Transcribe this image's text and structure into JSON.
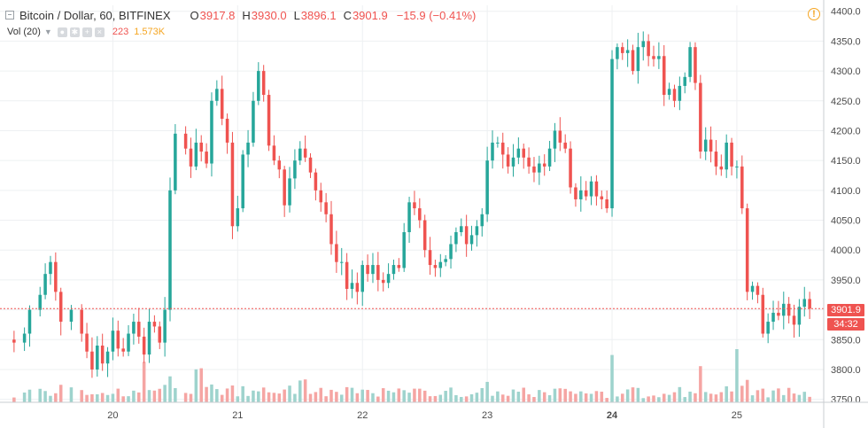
{
  "header": {
    "symbol_line": "Bitcoin / Dollar, 60, BITFINEX",
    "open_key": "O",
    "open_value": "3917.8",
    "high_key": "H",
    "high_value": "3930.0",
    "low_key": "L",
    "low_value": "3896.1",
    "close_key": "C",
    "close_value": "3901.9",
    "change": "−15.9 (−0.41%)"
  },
  "volume_legend": {
    "label": "Vol (20)",
    "value_a": "223",
    "value_b": "1.573K"
  },
  "price_badges": {
    "last_price": "3901.9",
    "countdown": "34:32"
  },
  "colors": {
    "up": "#26a69a",
    "down": "#ef5350",
    "up_volume": "#9ed3cd",
    "down_volume": "#f5a5a3",
    "price_line": "#ef5350",
    "alert": "#f5a623"
  },
  "icons": [
    "collapse-icon",
    "eye-icon",
    "settings-icon",
    "plus-icon",
    "close-icon",
    "alert-icon"
  ],
  "chart_data": {
    "type": "candlestick",
    "timeframe": "60",
    "y_ticks": [
      3750,
      3800,
      3850,
      3900,
      3950,
      4000,
      4050,
      4100,
      4150,
      4200,
      4250,
      4300,
      4350,
      4400
    ],
    "y_tick_labels": [
      "3750.0",
      "3800.0",
      "3850.0",
      "3900.0",
      "3950.0",
      "4000.0",
      "4050.0",
      "4100.0",
      "4150.0",
      "4200.0",
      "4250.0",
      "4300.0",
      "4350.0",
      "4400.0"
    ],
    "ylim": [
      3745,
      4410
    ],
    "x_ticks": [
      {
        "label": "20",
        "hour": 24,
        "bold": false
      },
      {
        "label": "21",
        "hour": 48,
        "bold": false
      },
      {
        "label": "22",
        "hour": 72,
        "bold": false
      },
      {
        "label": "23",
        "hour": 96,
        "bold": false
      },
      {
        "label": "24",
        "hour": 120,
        "bold": true
      },
      {
        "label": "25",
        "hour": 144,
        "bold": false
      }
    ],
    "x_range_hours": [
      4,
      159
    ],
    "last_price": 3901.9,
    "grid": true,
    "key_points": [
      [
        4,
        3850
      ],
      [
        5,
        3845
      ],
      [
        7,
        3860
      ],
      [
        8,
        3900
      ],
      [
        10,
        3925
      ],
      [
        11,
        3960
      ],
      [
        12,
        3980
      ],
      [
        13,
        3930
      ],
      [
        14,
        3880
      ],
      [
        16,
        3900
      ],
      [
        18,
        3860
      ],
      [
        19,
        3830
      ],
      [
        20,
        3800
      ],
      [
        21,
        3840
      ],
      [
        22,
        3810
      ],
      [
        23,
        3830
      ],
      [
        24,
        3865
      ],
      [
        25,
        3835
      ],
      [
        26,
        3830
      ],
      [
        27,
        3860
      ],
      [
        28,
        3880
      ],
      [
        29,
        3855
      ],
      [
        30,
        3825
      ],
      [
        31,
        3880
      ],
      [
        32,
        3872
      ],
      [
        33,
        3845
      ],
      [
        34,
        3900
      ],
      [
        35,
        4100
      ],
      [
        36,
        4195
      ],
      [
        38,
        4170
      ],
      [
        39,
        4140
      ],
      [
        40,
        4180
      ],
      [
        41,
        4165
      ],
      [
        42,
        4145
      ],
      [
        43,
        4250
      ],
      [
        44,
        4270
      ],
      [
        45,
        4220
      ],
      [
        46,
        4180
      ],
      [
        47,
        4040
      ],
      [
        48,
        4070
      ],
      [
        49,
        4160
      ],
      [
        50,
        4180
      ],
      [
        51,
        4250
      ],
      [
        52,
        4300
      ],
      [
        53,
        4260
      ],
      [
        54,
        4175
      ],
      [
        55,
        4150
      ],
      [
        56,
        4135
      ],
      [
        57,
        4075
      ],
      [
        58,
        4120
      ],
      [
        59,
        4150
      ],
      [
        60,
        4170
      ],
      [
        61,
        4155
      ],
      [
        62,
        4130
      ],
      [
        63,
        4100
      ],
      [
        64,
        4080
      ],
      [
        65,
        4060
      ],
      [
        66,
        4010
      ],
      [
        67,
        3980
      ],
      [
        68,
        3980
      ],
      [
        69,
        3935
      ],
      [
        70,
        3945
      ],
      [
        71,
        3930
      ],
      [
        72,
        3975
      ],
      [
        73,
        3960
      ],
      [
        74,
        3975
      ],
      [
        75,
        3950
      ],
      [
        76,
        3945
      ],
      [
        77,
        3960
      ],
      [
        78,
        3975
      ],
      [
        79,
        3970
      ],
      [
        80,
        4030
      ],
      [
        81,
        4080
      ],
      [
        82,
        4070
      ],
      [
        83,
        4050
      ],
      [
        84,
        4000
      ],
      [
        85,
        3975
      ],
      [
        86,
        3970
      ],
      [
        87,
        3980
      ],
      [
        88,
        3985
      ],
      [
        89,
        4010
      ],
      [
        90,
        4030
      ],
      [
        91,
        4040
      ],
      [
        92,
        4010
      ],
      [
        93,
        4025
      ],
      [
        94,
        4040
      ],
      [
        95,
        4060
      ],
      [
        96,
        4150
      ],
      [
        97,
        4180
      ],
      [
        98,
        4180
      ],
      [
        99,
        4160
      ],
      [
        100,
        4140
      ],
      [
        101,
        4155
      ],
      [
        102,
        4170
      ],
      [
        103,
        4155
      ],
      [
        104,
        4140
      ],
      [
        105,
        4130
      ],
      [
        106,
        4145
      ],
      [
        107,
        4140
      ],
      [
        108,
        4170
      ],
      [
        109,
        4200
      ],
      [
        110,
        4180
      ],
      [
        111,
        4170
      ],
      [
        112,
        4105
      ],
      [
        113,
        4085
      ],
      [
        114,
        4100
      ],
      [
        115,
        4090
      ],
      [
        116,
        4115
      ],
      [
        117,
        4090
      ],
      [
        118,
        4085
      ],
      [
        119,
        4070
      ],
      [
        120,
        4320
      ],
      [
        121,
        4340
      ],
      [
        122,
        4330
      ],
      [
        123,
        4335
      ],
      [
        124,
        4300
      ],
      [
        125,
        4340
      ],
      [
        126,
        4350
      ],
      [
        127,
        4325
      ],
      [
        128,
        4320
      ],
      [
        129,
        4325
      ],
      [
        130,
        4260
      ],
      [
        131,
        4270
      ],
      [
        132,
        4250
      ],
      [
        133,
        4275
      ],
      [
        134,
        4290
      ],
      [
        135,
        4340
      ],
      [
        136,
        4280
      ],
      [
        137,
        4165
      ],
      [
        138,
        4185
      ],
      [
        139,
        4165
      ],
      [
        140,
        4140
      ],
      [
        141,
        4135
      ],
      [
        142,
        4180
      ],
      [
        143,
        4140
      ],
      [
        144,
        4140
      ],
      [
        145,
        4070
      ],
      [
        146,
        3930
      ],
      [
        147,
        3940
      ],
      [
        148,
        3925
      ],
      [
        149,
        3860
      ],
      [
        150,
        3880
      ],
      [
        151,
        3895
      ],
      [
        152,
        3890
      ],
      [
        153,
        3910
      ],
      [
        154,
        3890
      ],
      [
        155,
        3875
      ],
      [
        156,
        3905
      ],
      [
        157,
        3918
      ],
      [
        158,
        3901.9
      ]
    ],
    "volume_scale": [
      0,
      1000
    ],
    "volume_spikes": [
      [
        30,
        760
      ],
      [
        40,
        620
      ],
      [
        41,
        640
      ],
      [
        60,
        410
      ],
      [
        61,
        430
      ],
      [
        120,
        890
      ],
      [
        137,
        680
      ],
      [
        144,
        1200
      ]
    ]
  }
}
